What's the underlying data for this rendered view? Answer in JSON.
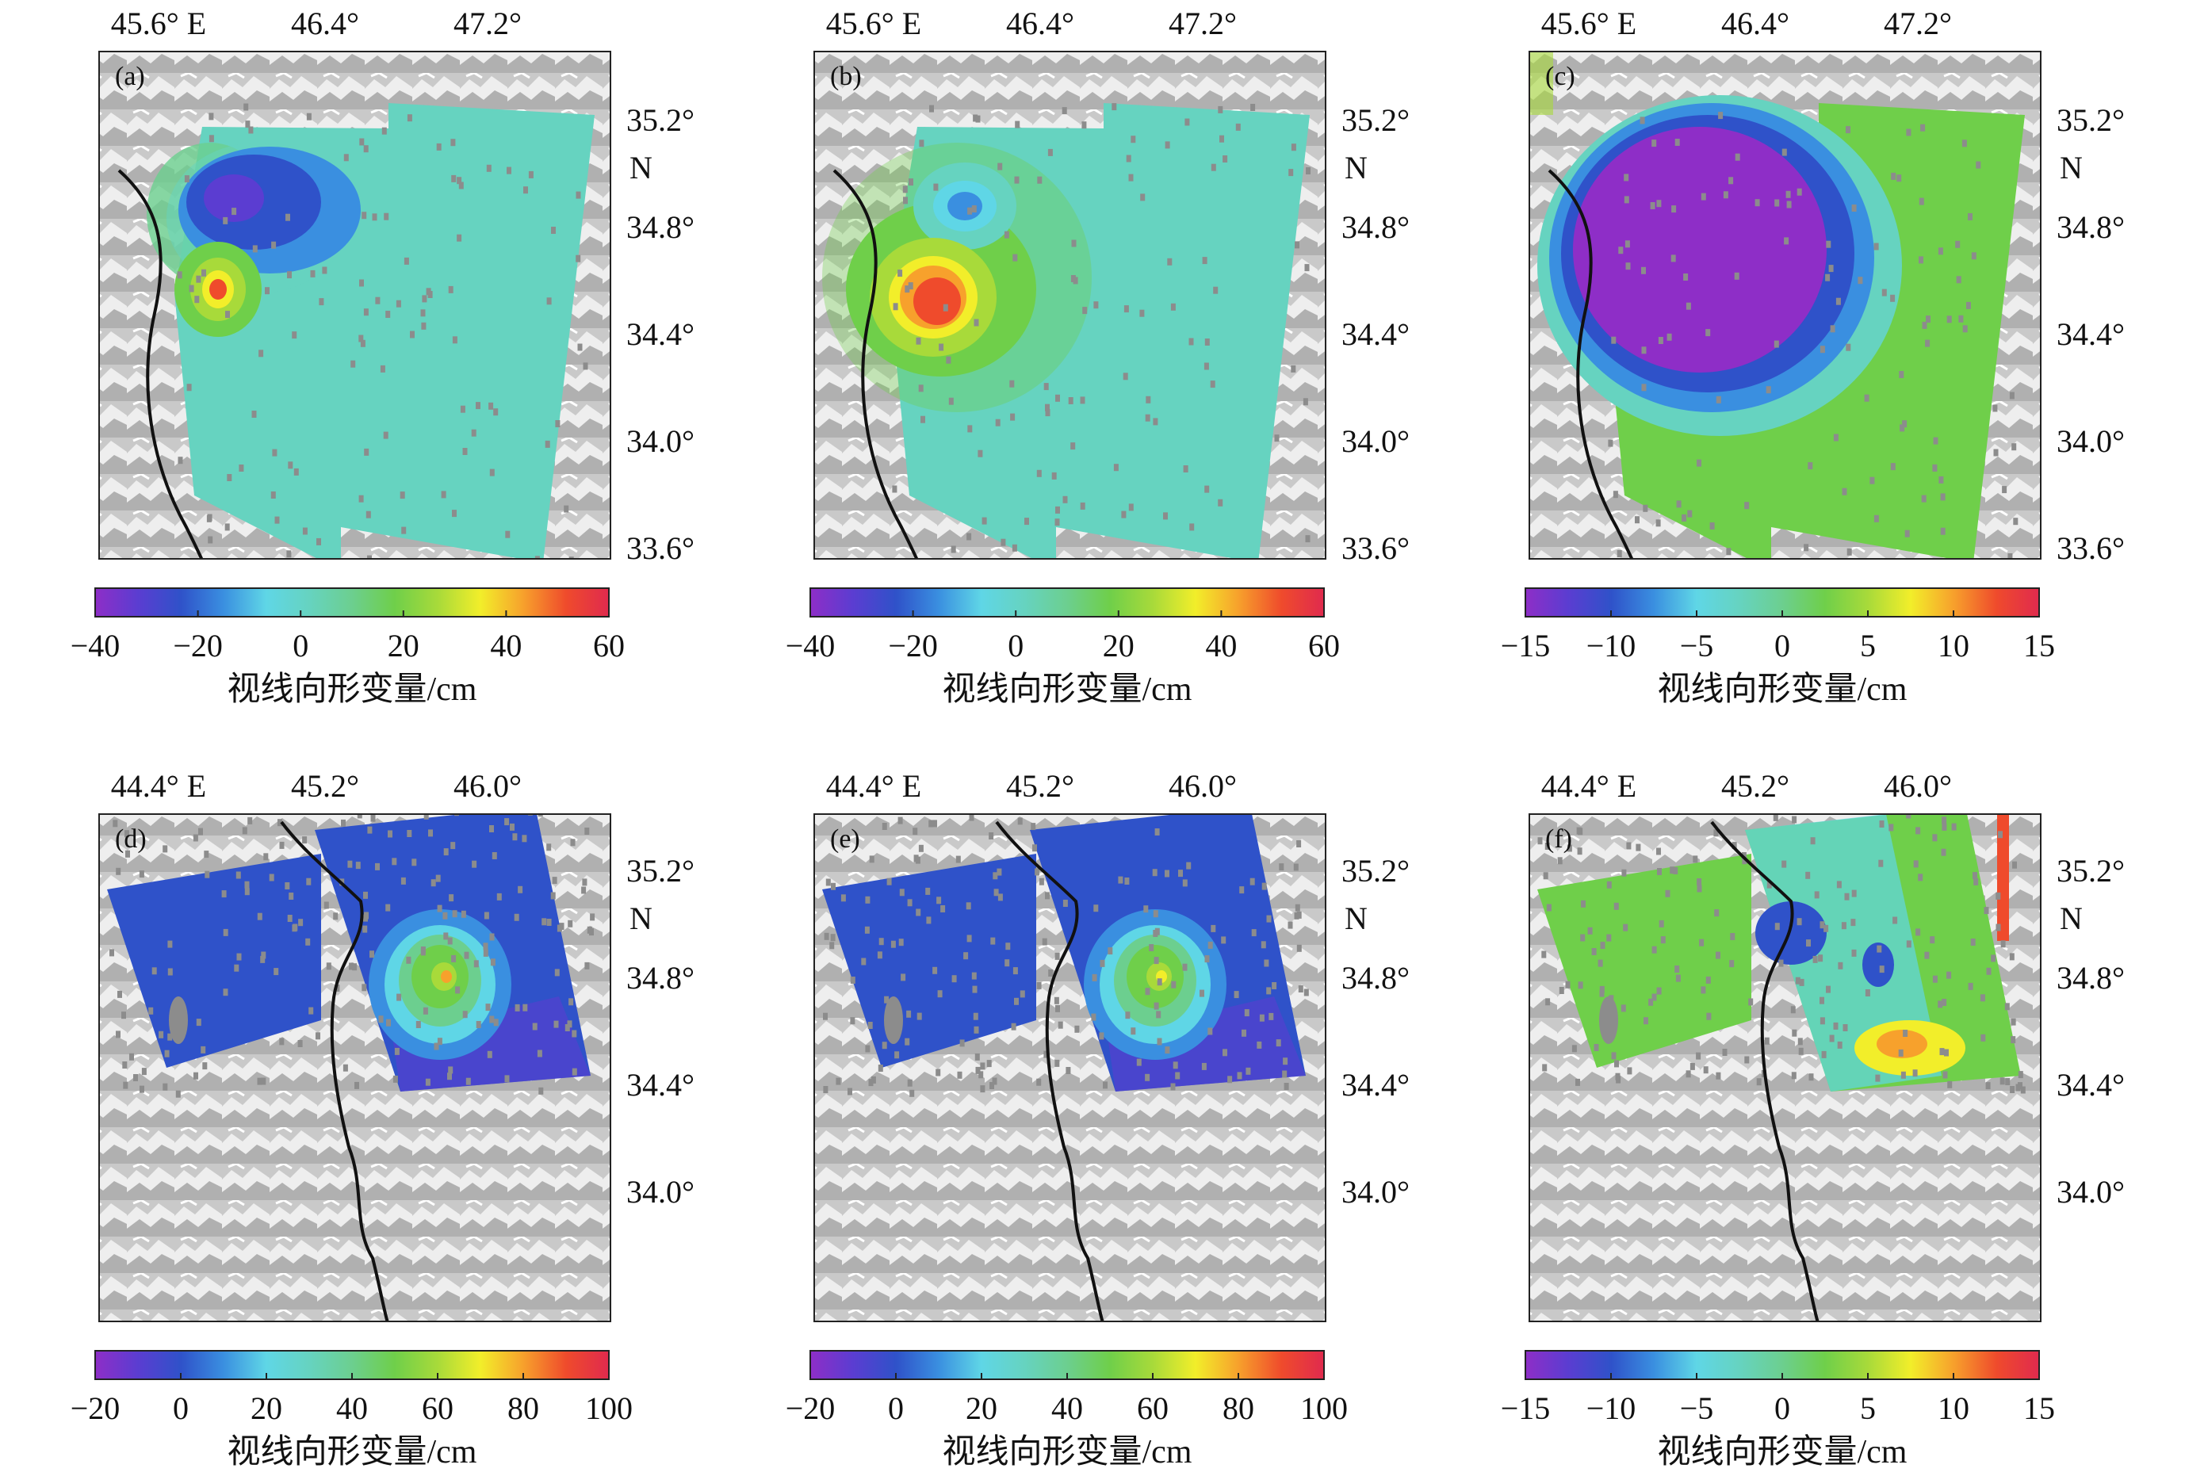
{
  "colorbar_label": "视线向形变量/cm",
  "east_suffix": "E",
  "north_suffix": "N",
  "palette": [
    "#8e2ec7",
    "#5b3dd1",
    "#2f52c9",
    "#3a8fe0",
    "#5fd6e6",
    "#66d3c0",
    "#6ccf8f",
    "#6fcf4a",
    "#a8da3a",
    "#f2ee2a",
    "#f7a12c",
    "#ef4b2c",
    "#e02a4e"
  ],
  "panels": [
    {
      "id": "a",
      "label": "(a)",
      "lon_ticks": [
        "45.6°",
        "46.4°",
        "47.2°"
      ],
      "lat_ticks": [
        "35.2°",
        "34.8°",
        "34.4°",
        "34.0°",
        "33.6°"
      ],
      "colorbar_ticks": [
        "−40",
        "−20",
        "0",
        "20",
        "40",
        "60"
      ],
      "colorbar_range": [
        -40,
        60
      ],
      "field_type": "ascending"
    },
    {
      "id": "b",
      "label": "(b)",
      "lon_ticks": [
        "45.6°",
        "46.4°",
        "47.2°"
      ],
      "lat_ticks": [
        "35.2°",
        "34.8°",
        "34.4°",
        "34.0°",
        "33.6°"
      ],
      "colorbar_ticks": [
        "−40",
        "−20",
        "0",
        "20",
        "40",
        "60"
      ],
      "colorbar_range": [
        -40,
        60
      ],
      "field_type": "model"
    },
    {
      "id": "c",
      "label": "(c)",
      "lon_ticks": [
        "45.6°",
        "46.4°",
        "47.2°"
      ],
      "lat_ticks": [
        "35.2°",
        "34.8°",
        "34.4°",
        "34.0°",
        "33.6°"
      ],
      "colorbar_ticks": [
        "−15",
        "−10",
        "−5",
        "0",
        "5",
        "10",
        "15"
      ],
      "colorbar_range": [
        -15,
        15
      ],
      "field_type": "residual-blob"
    },
    {
      "id": "d",
      "label": "(d)",
      "lon_ticks": [
        "44.4°",
        "45.2°",
        "46.0°"
      ],
      "lat_ticks": [
        "35.2°",
        "34.8°",
        "34.4°",
        "34.0°"
      ],
      "colorbar_ticks": [
        "−20",
        "0",
        "20",
        "40",
        "60",
        "80",
        "100"
      ],
      "colorbar_range": [
        -20,
        100
      ],
      "field_type": "descending"
    },
    {
      "id": "e",
      "label": "(e)",
      "lon_ticks": [
        "44.4°",
        "45.2°",
        "46.0°"
      ],
      "lat_ticks": [
        "35.2°",
        "34.8°",
        "34.4°",
        "34.0°"
      ],
      "colorbar_ticks": [
        "−20",
        "0",
        "20",
        "40",
        "60",
        "80",
        "100"
      ],
      "colorbar_range": [
        -20,
        100
      ],
      "field_type": "descending-model"
    },
    {
      "id": "f",
      "label": "(f)",
      "lon_ticks": [
        "44.4°",
        "45.2°",
        "46.0°"
      ],
      "lat_ticks": [
        "35.2°",
        "34.8°",
        "34.4°",
        "34.0°"
      ],
      "colorbar_ticks": [
        "−15",
        "−10",
        "−5",
        "0",
        "5",
        "10",
        "15"
      ],
      "colorbar_range": [
        -15,
        15
      ],
      "field_type": "descending-residual"
    }
  ]
}
